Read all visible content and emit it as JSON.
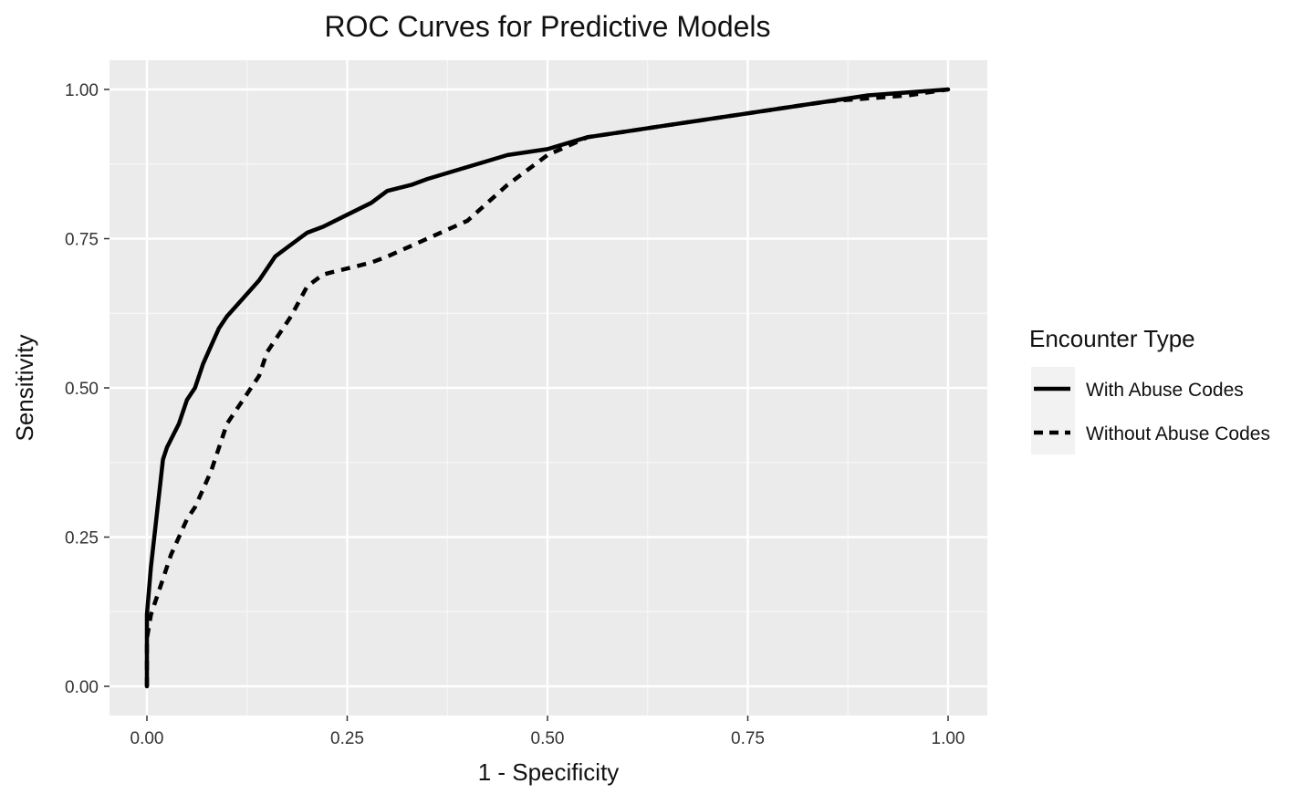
{
  "chart_data": {
    "type": "line",
    "title": "ROC Curves for Predictive Models",
    "xlabel": "1 - Specificity",
    "ylabel": "Sensitivity",
    "xlim": [
      0,
      1
    ],
    "ylim": [
      0,
      1
    ],
    "x_ticks": [
      "0.00",
      "0.25",
      "0.50",
      "0.75",
      "1.00"
    ],
    "y_ticks": [
      "0.00",
      "0.25",
      "0.50",
      "0.75",
      "1.00"
    ],
    "grid": true,
    "legend": {
      "title": "Encounter Type",
      "position": "right"
    },
    "series": [
      {
        "name": "With Abuse Codes",
        "style": "solid",
        "color": "#000000",
        "x": [
          0.0,
          0.0,
          0.005,
          0.01,
          0.015,
          0.02,
          0.025,
          0.04,
          0.05,
          0.06,
          0.07,
          0.08,
          0.09,
          0.1,
          0.12,
          0.14,
          0.15,
          0.16,
          0.18,
          0.2,
          0.22,
          0.25,
          0.28,
          0.3,
          0.33,
          0.35,
          0.4,
          0.45,
          0.5,
          0.55,
          0.6,
          0.65,
          0.7,
          0.75,
          0.8,
          0.85,
          0.9,
          0.95,
          1.0
        ],
        "y": [
          0.0,
          0.12,
          0.2,
          0.26,
          0.32,
          0.38,
          0.4,
          0.44,
          0.48,
          0.5,
          0.54,
          0.57,
          0.6,
          0.62,
          0.65,
          0.68,
          0.7,
          0.72,
          0.74,
          0.76,
          0.77,
          0.79,
          0.81,
          0.83,
          0.84,
          0.85,
          0.87,
          0.89,
          0.9,
          0.92,
          0.93,
          0.94,
          0.95,
          0.96,
          0.97,
          0.98,
          0.99,
          0.995,
          1.0
        ]
      },
      {
        "name": "Without Abuse Codes",
        "style": "dashed",
        "color": "#000000",
        "x": [
          0.0,
          0.0,
          0.005,
          0.01,
          0.02,
          0.03,
          0.04,
          0.05,
          0.06,
          0.07,
          0.08,
          0.09,
          0.1,
          0.12,
          0.14,
          0.15,
          0.16,
          0.18,
          0.2,
          0.22,
          0.25,
          0.28,
          0.3,
          0.35,
          0.4,
          0.45,
          0.5,
          0.55,
          0.6,
          0.65,
          0.7,
          0.75,
          0.8,
          0.85,
          0.9,
          0.95,
          1.0
        ],
        "y": [
          0.0,
          0.08,
          0.12,
          0.14,
          0.18,
          0.22,
          0.25,
          0.28,
          0.3,
          0.33,
          0.36,
          0.4,
          0.44,
          0.48,
          0.52,
          0.56,
          0.58,
          0.62,
          0.67,
          0.69,
          0.7,
          0.71,
          0.72,
          0.75,
          0.78,
          0.84,
          0.89,
          0.92,
          0.93,
          0.94,
          0.95,
          0.96,
          0.97,
          0.98,
          0.985,
          0.99,
          1.0
        ]
      }
    ]
  }
}
